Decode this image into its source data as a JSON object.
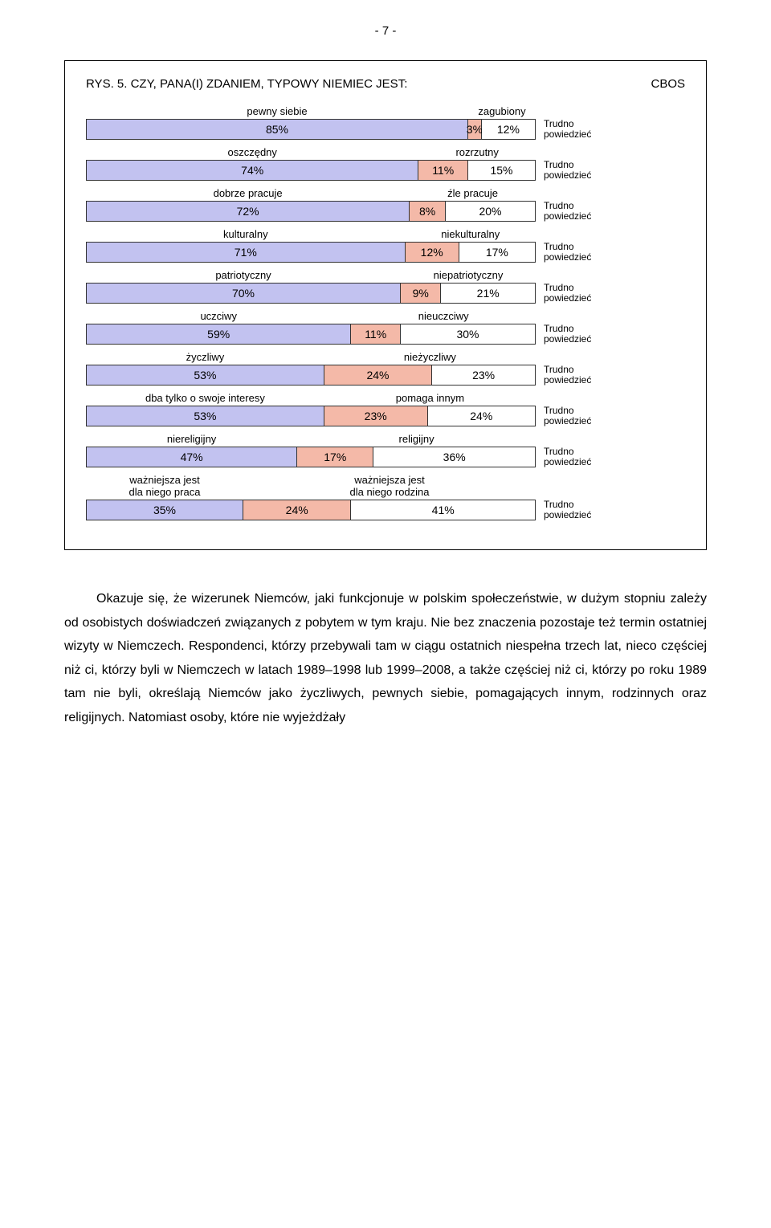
{
  "page_number": "- 7 -",
  "corner_label": "CBOS",
  "chart_title": "RYS. 5. CZY, PANA(I) ZDANIEM, TYPOWY NIEMIEC JEST:",
  "trudno_line1": "Trudno",
  "trudno_line2": "powiedzieć",
  "colors": {
    "seg1": "#c2c2f0",
    "seg2": "#f4b9a8",
    "seg3": "#ffffff"
  },
  "bar_area_width": 560,
  "rows": [
    {
      "left_label": "pewny siebie",
      "right_label": "zagubiony",
      "values": [
        85,
        3,
        12
      ],
      "labels": [
        "85%",
        "3%",
        "12%"
      ]
    },
    {
      "left_label": "oszczędny",
      "right_label": "rozrzutny",
      "values": [
        74,
        11,
        15
      ],
      "labels": [
        "74%",
        "11%",
        "15%"
      ]
    },
    {
      "left_label": "dobrze pracuje",
      "right_label": "źle pracuje",
      "values": [
        72,
        8,
        20
      ],
      "labels": [
        "72%",
        "8%",
        "20%"
      ]
    },
    {
      "left_label": "kulturalny",
      "right_label": "niekulturalny",
      "values": [
        71,
        12,
        17
      ],
      "labels": [
        "71%",
        "12%",
        "17%"
      ]
    },
    {
      "left_label": "patriotyczny",
      "right_label": "niepatriotyczny",
      "values": [
        70,
        9,
        21
      ],
      "labels": [
        "70%",
        "9%",
        "21%"
      ]
    },
    {
      "left_label": "uczciwy",
      "right_label": "nieuczciwy",
      "values": [
        59,
        11,
        30
      ],
      "labels": [
        "59%",
        "11%",
        "30%"
      ]
    },
    {
      "left_label": "życzliwy",
      "right_label": "nieżyczliwy",
      "values": [
        53,
        24,
        23
      ],
      "labels": [
        "53%",
        "24%",
        "23%"
      ]
    },
    {
      "left_label": "dba tylko o swoje interesy",
      "right_label": "pomaga innym",
      "values": [
        53,
        23,
        24
      ],
      "labels": [
        "53%",
        "23%",
        "24%"
      ]
    },
    {
      "left_label": "niereligijny",
      "right_label": "religijny",
      "values": [
        47,
        17,
        36
      ],
      "labels": [
        "47%",
        "17%",
        "36%"
      ]
    },
    {
      "left_label": "ważniejsza jest\ndla niego praca",
      "right_label": "ważniejsza jest\ndla niego rodzina",
      "values": [
        35,
        24,
        41
      ],
      "labels": [
        "35%",
        "24%",
        "41%"
      ]
    }
  ],
  "body_text": "Okazuje się, że wizerunek Niemców, jaki funkcjonuje w polskim społeczeństwie, w dużym stopniu zależy od osobistych doświadczeń związanych z pobytem w tym kraju. Nie bez znaczenia pozostaje też termin ostatniej wizyty w Niemczech. Respondenci, którzy przebywali tam w ciągu ostatnich niespełna trzech lat, nieco częściej niż ci, którzy byli w Niemczech w latach 1989–1998 lub 1999–2008, a także częściej niż ci, którzy po roku 1989 tam nie byli, określają Niemców jako życzliwych, pewnych siebie, pomagających innym, rodzinnych oraz religijnych. Natomiast osoby, które nie wyjeżdżały"
}
